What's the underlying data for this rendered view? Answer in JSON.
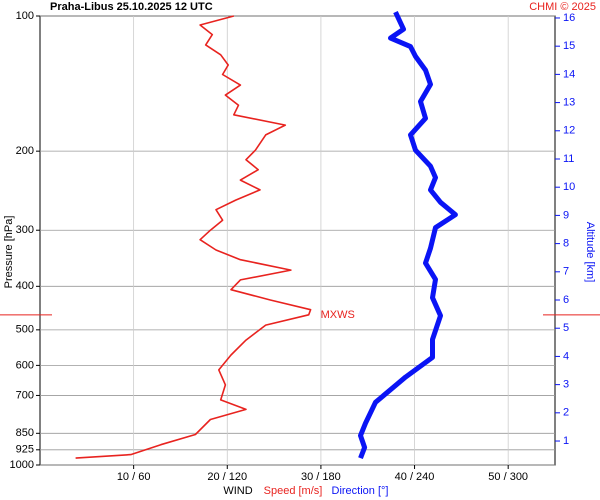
{
  "chart_data": {
    "type": "wind-profile",
    "title": "Praha-Libus    25.10.2025 12 UTC",
    "credit": "CHMI © 2025",
    "ylabel": "Pressure [hPa]",
    "y2label": "Altitude [km]",
    "xlabel": "WIND",
    "xlabel_speed": "Speed [m/s]",
    "xlabel_direction": "Direction [°]",
    "ylim": [
      100,
      1000
    ],
    "ylog": true,
    "yticks": [
      100,
      200,
      300,
      400,
      500,
      600,
      700,
      850,
      925,
      1000
    ],
    "y2lim": [
      0.15,
      16.07
    ],
    "y2ticks": [
      1,
      2,
      3,
      4,
      5,
      6,
      7,
      8,
      9,
      10,
      11,
      12,
      13,
      14,
      15,
      16
    ],
    "xlim": [
      0,
      55
    ],
    "x2lim": [
      0,
      330
    ],
    "xticks": [
      {
        "value": 10,
        "label": "10 / 60"
      },
      {
        "value": 20,
        "label": "20 / 120"
      },
      {
        "value": 30,
        "label": "30 / 180"
      },
      {
        "value": 40,
        "label": "40 / 240"
      },
      {
        "value": 50,
        "label": "50 / 300"
      }
    ],
    "grid": true,
    "annotations": [
      {
        "text": "MXWS",
        "pressure": 463,
        "color": "#e8231f"
      }
    ],
    "series": [
      {
        "name": "Speed [m/s]",
        "color": "#e8231f",
        "axis": "x",
        "pressure": [
          100,
          104.7,
          110,
          116,
          122,
          128.6,
          135,
          142.5,
          150,
          158,
          166,
          175,
          184,
          199,
          209,
          220,
          232,
          244,
          257,
          270,
          285,
          300,
          315,
          332,
          349,
          368,
          387,
          407,
          429,
          451,
          463,
          488,
          527,
          569,
          614,
          663,
          716,
          752,
          792,
          855,
          901,
          948,
          965
        ],
        "values": [
          20.7,
          17.1,
          18.4,
          17.7,
          19.3,
          20.1,
          19.5,
          21.4,
          19.8,
          21.2,
          20.7,
          26.2,
          24.1,
          23.0,
          22.0,
          23.3,
          21.4,
          23.5,
          20.9,
          18.8,
          19.5,
          18.2,
          17.1,
          18.8,
          21.4,
          26.8,
          21.4,
          20.4,
          24.6,
          28.9,
          28.7,
          24.1,
          22.0,
          20.4,
          19.1,
          19.8,
          19.3,
          22.0,
          18.2,
          16.6,
          12.9,
          9.7,
          3.8
        ]
      },
      {
        "name": "Direction [°]",
        "color": "#0a14f5",
        "axis": "x2",
        "pressure": [
          98,
          107,
          112,
          117,
          123,
          132,
          142,
          155,
          169,
          184,
          199,
          216,
          229,
          244,
          260,
          277,
          296,
          329,
          355,
          386,
          424,
          465,
          525,
          576,
          637,
          725,
          807,
          860,
          914,
          965
        ],
        "values": [
          227.8,
          232.9,
          224.6,
          237.4,
          240.6,
          247,
          250.2,
          243.8,
          247,
          237.4,
          240.6,
          250.2,
          253.4,
          250.2,
          256.6,
          266.2,
          253.4,
          250.2,
          247,
          253.4,
          251.5,
          256.6,
          251.5,
          251.5,
          234.2,
          215,
          208.6,
          205.4,
          208,
          205.4
        ]
      }
    ]
  }
}
